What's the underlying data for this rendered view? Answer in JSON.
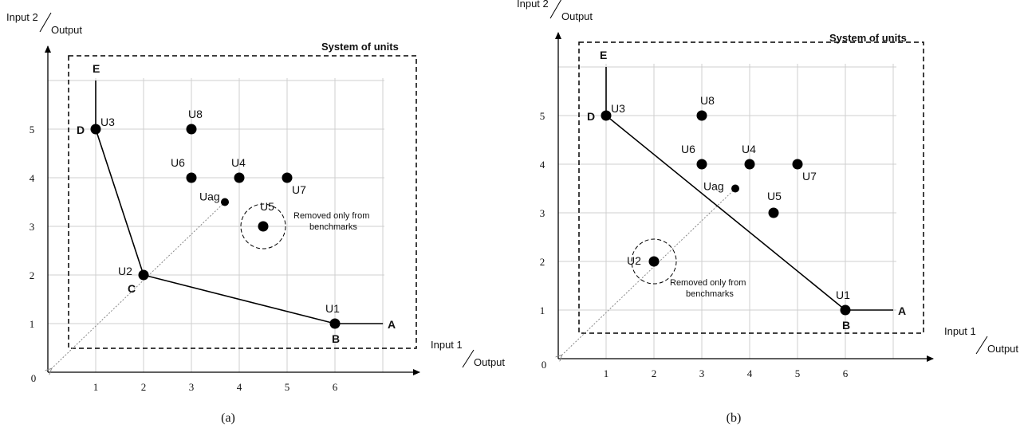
{
  "chart_data": [
    {
      "type": "scatter",
      "caption": "(a)",
      "axis_labels": {
        "y_num": "Input 2",
        "y_den": "Output",
        "x_num": "Input 1",
        "x_den": "Output"
      },
      "origin_label": "0",
      "x_ticks": [
        "1",
        "2",
        "3",
        "4",
        "5",
        "6"
      ],
      "y_ticks": [
        "1",
        "2",
        "3",
        "4",
        "5"
      ],
      "box_title": "System of units",
      "points": [
        {
          "name": "U1",
          "x": 6,
          "y": 1
        },
        {
          "name": "U2",
          "x": 2,
          "y": 2
        },
        {
          "name": "U3",
          "x": 1,
          "y": 5
        },
        {
          "name": "U4",
          "x": 4,
          "y": 4
        },
        {
          "name": "U5",
          "x": 4.5,
          "y": 3
        },
        {
          "name": "U6",
          "x": 3,
          "y": 4
        },
        {
          "name": "U7",
          "x": 5,
          "y": 4
        },
        {
          "name": "U8",
          "x": 3,
          "y": 5
        }
      ],
      "aggregate": {
        "name": "Uag",
        "x": 3.7,
        "y": 3.5
      },
      "frontier": [
        [
          1,
          6
        ],
        [
          1,
          5
        ],
        [
          2,
          2
        ],
        [
          6,
          1
        ],
        [
          7,
          1
        ]
      ],
      "corner_labels": [
        "E",
        "D",
        "C",
        "B",
        "A"
      ],
      "removed": {
        "point": "U5",
        "note_lines": [
          "Removed only from",
          "benchmarks"
        ]
      }
    },
    {
      "type": "scatter",
      "caption": "(b)",
      "axis_labels": {
        "y_num": "Input 2",
        "y_den": "Output",
        "x_num": "Input 1",
        "x_den": "Output"
      },
      "origin_label": "0",
      "x_ticks": [
        "1",
        "2",
        "3",
        "4",
        "5",
        "6"
      ],
      "y_ticks": [
        "1",
        "2",
        "3",
        "4",
        "5"
      ],
      "box_title": "System of units",
      "points": [
        {
          "name": "U1",
          "x": 6,
          "y": 1
        },
        {
          "name": "U2",
          "x": 2,
          "y": 2
        },
        {
          "name": "U3",
          "x": 1,
          "y": 5
        },
        {
          "name": "U4",
          "x": 4,
          "y": 4
        },
        {
          "name": "U5",
          "x": 4.5,
          "y": 3
        },
        {
          "name": "U6",
          "x": 3,
          "y": 4
        },
        {
          "name": "U7",
          "x": 5,
          "y": 4
        },
        {
          "name": "U8",
          "x": 3,
          "y": 5
        }
      ],
      "aggregate": {
        "name": "Uag",
        "x": 3.7,
        "y": 3.5
      },
      "frontier": [
        [
          1,
          6
        ],
        [
          1,
          5
        ],
        [
          6,
          1
        ],
        [
          7,
          1
        ]
      ],
      "corner_labels": [
        "E",
        "D",
        "B",
        "A"
      ],
      "removed": {
        "point": "U2",
        "note_lines": [
          "Removed only from",
          "benchmarks"
        ]
      }
    }
  ]
}
